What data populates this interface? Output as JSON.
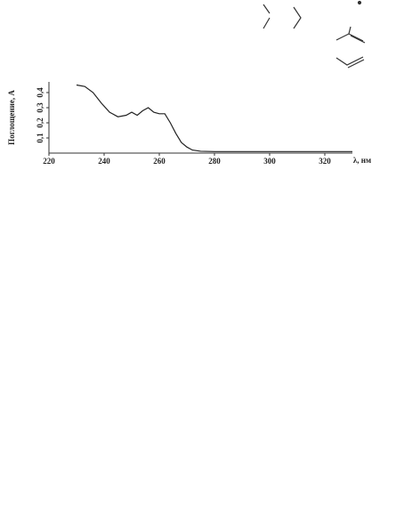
{
  "chart_data": {
    "type": "line",
    "xlabel": "λ, нм",
    "ylabel": "Поглощение, А",
    "x": [
      230,
      233,
      236,
      239,
      242,
      245,
      248,
      250,
      252,
      254,
      256,
      258,
      260,
      262,
      264,
      266,
      268,
      270,
      272,
      275,
      280,
      290,
      300,
      310,
      320,
      330
    ],
    "series": [
      {
        "color": "#222222",
        "values": [
          0.45,
          0.44,
          0.4,
          0.33,
          0.27,
          0.24,
          0.25,
          0.27,
          0.25,
          0.28,
          0.3,
          0.27,
          0.26,
          0.26,
          0.2,
          0.13,
          0.07,
          0.04,
          0.02,
          0.012,
          0.01,
          0.01,
          0.01,
          0.01,
          0.01,
          0.01
        ]
      }
    ],
    "xlim": [
      220,
      330
    ],
    "xticks": [
      220,
      240,
      260,
      280,
      300,
      320
    ],
    "ylim": [
      0,
      0.45
    ],
    "yticks": [
      {
        "value": 0.1,
        "label": "0,1"
      },
      {
        "value": 0.2,
        "label": "0,2"
      },
      {
        "value": 0.3,
        "label": "0,3"
      },
      {
        "value": 0.4,
        "label": "0,4"
      }
    ]
  }
}
